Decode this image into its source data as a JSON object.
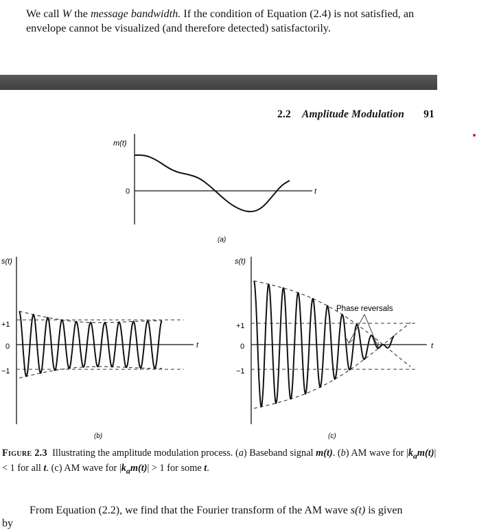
{
  "intro_paragraph": {
    "t1": "We call ",
    "w": "W",
    "t2": " the ",
    "term": "message bandwidth.",
    "t3": " If the condition of Equation (2.4) is not satisfied, an envelope cannot be visualized (and therefore detected) satisfactorily."
  },
  "running_head": {
    "section": "2.2",
    "title": "Amplitude Modulation",
    "page_number": "91"
  },
  "figure": {
    "panel_a": {
      "y_label": "m(t)",
      "zero_label": "0",
      "x_label": "t",
      "panel_label": "(a)"
    },
    "panel_b": {
      "y_label": "s(t)",
      "plus_one": "+1",
      "zero": "0",
      "minus_one": "−1",
      "x_label": "t",
      "panel_label": "(b)"
    },
    "panel_c": {
      "y_label": "s(t)",
      "plus_one": "+1",
      "zero": "0",
      "minus_one": "−1",
      "x_label": "t",
      "panel_label": "(c)",
      "annotation": "Phase reversals"
    }
  },
  "caption": {
    "label": "Figure 2.3",
    "c1": "Illustrating the amplitude modulation process. (",
    "a": "a",
    "c2": ") Baseband signal ",
    "mt": "m(t)",
    "c3": ". (",
    "b": "b",
    "c4": ") AM wave for |",
    "ka1": "k",
    "sub1": "a",
    "mt2": "m(t)",
    "c5": "| < 1 for all ",
    "t1": "t",
    "c6": ". (c) AM wave for |",
    "ka2": "k",
    "sub2": "a",
    "mt3": "m(t)",
    "c7": "| > 1 for some ",
    "t2": "t",
    "c8": "."
  },
  "bottom_paragraph": {
    "t1": "From Equation (2.2), we find that the Fourier transform of the AM wave ",
    "st": "s(t)",
    "t2": " is given"
  },
  "bottom_by": "by",
  "colors": {
    "text": "#111111",
    "bar": "#4a4a4a",
    "accent_dot": "#e01b1b"
  }
}
